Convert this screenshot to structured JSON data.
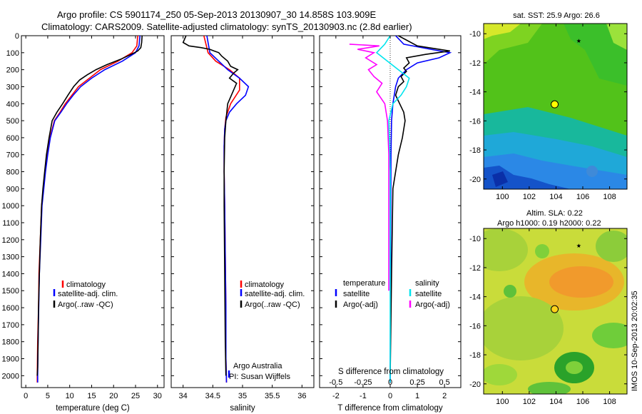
{
  "header": {
    "line1": "Argo profile: CS 5901174_250 05-Sep-2013 20130907_30 14.858S 103.909E",
    "line2": "Climatology: CARS2009. Satellite-adjusted climatology: synTS_20130903.nc (2.8d earlier)"
  },
  "side_stamp": "IMOS 10-Sep-2013 20:02:35",
  "colors": {
    "climatology": "#ff0000",
    "satellite": "#0000ff",
    "argo": "#000000",
    "salinity_satellite": "#00e5ee",
    "salinity_argo": "#ff00ff"
  },
  "chart_data": [
    {
      "id": "temperature",
      "type": "line",
      "xlabel": "temperature (deg C)",
      "xlim": [
        -1,
        31.5
      ],
      "xticks": [
        0,
        5,
        10,
        15,
        20,
        25,
        30
      ],
      "ylim": [
        2070,
        0
      ],
      "yticks": [
        0,
        100,
        200,
        300,
        400,
        500,
        600,
        700,
        800,
        900,
        1000,
        1100,
        1200,
        1300,
        1400,
        1500,
        1600,
        1700,
        1800,
        1900,
        2000
      ],
      "legend_position": "lower-middle",
      "legend": [
        "climatology",
        "satellite-adj. clim.",
        "Argo(..raw -QC)"
      ],
      "series": [
        {
          "name": "climatology",
          "color": "#ff0000",
          "x": [
            25.5,
            25.3,
            24.2,
            21.0,
            17.0,
            14.5,
            12.0,
            10.5,
            9.0,
            7.8,
            6.5,
            5.5,
            4.9,
            4.4,
            4.0,
            3.6,
            3.3,
            3.0,
            2.9,
            2.7,
            2.6,
            2.6
          ],
          "y": [
            0,
            60,
            100,
            150,
            200,
            250,
            300,
            350,
            400,
            450,
            500,
            600,
            700,
            800,
            900,
            1000,
            1200,
            1400,
            1600,
            1800,
            2000,
            2040
          ]
        },
        {
          "name": "satellite-adj. clim.",
          "color": "#0000ff",
          "x": [
            26.0,
            25.8,
            25.0,
            22.0,
            18.0,
            15.0,
            12.5,
            10.8,
            9.3,
            8.0,
            6.6,
            5.6,
            5.0,
            4.5,
            4.1,
            3.7,
            3.4,
            3.1,
            2.95,
            2.8,
            2.7,
            2.7
          ],
          "y": [
            0,
            60,
            100,
            150,
            200,
            250,
            300,
            350,
            400,
            450,
            500,
            600,
            700,
            800,
            900,
            1000,
            1200,
            1400,
            1600,
            1800,
            2000,
            2040
          ]
        },
        {
          "name": "Argo(..raw -QC)",
          "color": "#000000",
          "x": [
            26.5,
            26.4,
            26.2,
            25.5,
            24.0,
            21.5,
            18.5,
            16.0,
            14.0,
            12.3,
            10.9,
            9.6,
            8.4,
            7.1,
            6.0,
            5.3,
            4.7,
            4.3,
            3.9,
            3.6,
            3.3,
            3.1,
            2.9,
            2.8,
            2.7,
            2.6
          ],
          "y": [
            0,
            40,
            70,
            90,
            110,
            140,
            170,
            200,
            230,
            260,
            300,
            350,
            400,
            450,
            500,
            600,
            700,
            800,
            900,
            1000,
            1200,
            1400,
            1600,
            1800,
            1950,
            2000
          ]
        }
      ]
    },
    {
      "id": "salinity",
      "type": "line",
      "xlabel": "salinity",
      "xlim": [
        33.8,
        36.2
      ],
      "xticks": [
        34,
        34.5,
        35,
        35.5,
        36
      ],
      "ylim": [
        2070,
        0
      ],
      "legend_position": "lower-middle",
      "legend": [
        "climatology",
        "satellite-adj. clim.",
        "Argo(..raw -QC)"
      ],
      "annotations": [
        "Argo Australia",
        "PI: Susan Wijffels"
      ],
      "series": [
        {
          "name": "climatology",
          "color": "#ff0000",
          "x": [
            34.35,
            34.42,
            34.55,
            34.78,
            34.95,
            34.95,
            34.8,
            34.72,
            34.7,
            34.69,
            34.69,
            34.7,
            34.71,
            34.72,
            34.72,
            34.73
          ],
          "y": [
            0,
            100,
            150,
            200,
            250,
            320,
            400,
            480,
            550,
            650,
            800,
            1000,
            1300,
            1600,
            1900,
            2040
          ]
        },
        {
          "name": "satellite-adj. clim.",
          "color": "#0000ff",
          "x": [
            34.4,
            34.45,
            34.6,
            34.75,
            34.95,
            35.1,
            35.05,
            34.9,
            34.78,
            34.72,
            34.7,
            34.69,
            34.69,
            34.7,
            34.71,
            34.72,
            34.72,
            34.73
          ],
          "y": [
            0,
            100,
            150,
            200,
            250,
            300,
            350,
            400,
            450,
            500,
            550,
            650,
            800,
            1000,
            1300,
            1600,
            1900,
            2040
          ]
        },
        {
          "name": "Argo(..raw -QC)",
          "color": "#000000",
          "x": [
            34.05,
            34.0,
            34.1,
            34.3,
            34.45,
            34.52,
            34.6,
            34.65,
            34.75,
            34.8,
            34.92,
            34.85,
            34.78,
            34.9,
            34.85,
            34.75,
            34.72,
            34.7,
            34.69,
            34.69,
            34.7,
            34.71,
            34.72
          ],
          "y": [
            0,
            40,
            60,
            70,
            80,
            90,
            100,
            120,
            150,
            180,
            200,
            220,
            250,
            280,
            320,
            400,
            500,
            600,
            800,
            1000,
            1400,
            1800,
            2000
          ]
        }
      ]
    },
    {
      "id": "difference",
      "type": "line",
      "xlabel": "T difference from climatology",
      "xlabel_top": "S difference from climatology",
      "xlim": [
        -2.6,
        2.6
      ],
      "xticks": [
        -2,
        -1,
        0,
        1,
        2
      ],
      "top_ticks": [
        "-0.5",
        "-0.25",
        "0",
        "0.25",
        "0.5"
      ],
      "top_tick_positions_T": [
        -2,
        -1,
        0,
        1,
        2
      ],
      "ylim": [
        2070,
        0
      ],
      "legend_position": "lower-middle",
      "legend_groups": [
        {
          "title": "temperature",
          "items": [
            "satellite",
            "Argo(-adj)"
          ]
        },
        {
          "title": "salinity",
          "items": [
            "satellite",
            "Argo(-adj)"
          ]
        }
      ],
      "series": [
        {
          "name": "temperature satellite",
          "color": "#0000ff",
          "x": [
            0.2,
            0.5,
            1.5,
            2.2,
            1.8,
            1.0,
            0.6,
            0.3,
            0.2,
            0.1,
            0.05,
            0.03,
            0.02,
            0.01,
            0.0
          ],
          "y": [
            0,
            50,
            80,
            100,
            130,
            160,
            200,
            250,
            300,
            400,
            500,
            700,
            1000,
            1500,
            2040
          ]
        },
        {
          "name": "temperature Argo(-adj)",
          "color": "#000000",
          "x": [
            0.3,
            1.0,
            2.2,
            1.3,
            0.6,
            0.7,
            0.5,
            0.6,
            0.4,
            0.5,
            0.3,
            0.2,
            0.35,
            0.5,
            0.55,
            0.45,
            0.3,
            0.1,
            0.05,
            0.0
          ],
          "y": [
            0,
            60,
            90,
            110,
            130,
            160,
            190,
            210,
            240,
            270,
            300,
            350,
            400,
            450,
            500,
            600,
            700,
            900,
            1400,
            2000
          ]
        },
        {
          "name": "salinity satellite",
          "color": "#00e5ee",
          "x": [
            0.0,
            -0.2,
            -0.5,
            -0.1,
            0.3,
            0.7,
            0.6,
            0.4,
            0.1,
            -0.05,
            0.0,
            0.0
          ],
          "y": [
            0,
            50,
            100,
            150,
            200,
            250,
            300,
            350,
            400,
            500,
            800,
            2040
          ]
        },
        {
          "name": "salinity Argo(-adj)",
          "color": "#ff00ff",
          "x": [
            -1.5,
            -0.4,
            -1.2,
            -0.6,
            -0.9,
            -0.5,
            -0.8,
            -0.6,
            -0.3,
            -0.5,
            -0.2,
            -0.1,
            -0.05,
            -0.05,
            -0.05
          ],
          "y": [
            50,
            60,
            80,
            100,
            130,
            170,
            200,
            240,
            280,
            330,
            400,
            500,
            700,
            1000,
            1500
          ]
        }
      ]
    },
    {
      "id": "sst_map",
      "type": "heatmap",
      "title": "sat. SST: 25.9 Argo: 26.6",
      "xticks": [
        100,
        102,
        104,
        106,
        108
      ],
      "yticks": [
        -10,
        -12,
        -14,
        -16,
        -18,
        -20
      ],
      "xlim": [
        98.6,
        109.3
      ],
      "ylim": [
        -20.7,
        -9.3
      ],
      "argo_position": [
        103.9,
        -14.86
      ],
      "marker_position": [
        105.7,
        -10.5
      ]
    },
    {
      "id": "sla_map",
      "type": "heatmap",
      "title_line1": "Altim. SLA: 0.22",
      "title_line2": "Argo h1000: 0.19 h2000: 0.22",
      "xticks": [
        100,
        102,
        104,
        106,
        108
      ],
      "yticks": [
        -10,
        -12,
        -14,
        -16,
        -18,
        -20
      ],
      "xlim": [
        98.6,
        109.3
      ],
      "ylim": [
        -20.7,
        -9.3
      ],
      "argo_position": [
        103.9,
        -14.86
      ],
      "marker_position": [
        105.7,
        -10.5
      ]
    }
  ]
}
